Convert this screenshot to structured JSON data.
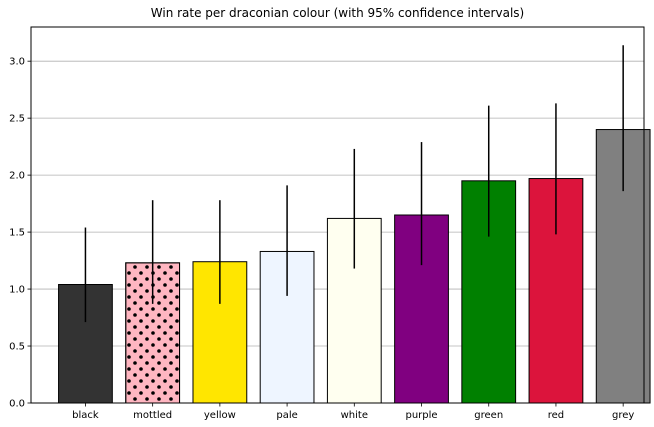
{
  "chart_data": {
    "type": "bar",
    "title": "Win rate per draconian colour (with 95% confidence intervals)",
    "xlabel": "",
    "ylabel": "",
    "categories": [
      "black",
      "mottled",
      "yellow",
      "pale",
      "white",
      "purple",
      "green",
      "red",
      "grey"
    ],
    "values": [
      1.04,
      1.23,
      1.24,
      1.33,
      1.62,
      1.65,
      1.95,
      1.97,
      2.4
    ],
    "ci_low": [
      0.71,
      0.87,
      0.87,
      0.94,
      1.18,
      1.21,
      1.46,
      1.48,
      1.86
    ],
    "ci_high": [
      1.54,
      1.78,
      1.78,
      1.91,
      2.23,
      2.29,
      2.61,
      2.63,
      3.14
    ],
    "bar_colors": [
      "#333333",
      "#ffb6c1",
      "#ffe600",
      "#eef5ff",
      "#fffff0",
      "#800080",
      "#008000",
      "#dc143c",
      "#808080"
    ],
    "bar_patterns": [
      "none",
      "dots",
      "none",
      "none",
      "none",
      "none",
      "none",
      "none",
      "none"
    ],
    "ylim": [
      0,
      3.3
    ],
    "yticks": [
      0.0,
      0.5,
      1.0,
      1.5,
      2.0,
      2.5,
      3.0
    ],
    "ytick_labels": [
      "0.0",
      "0.5",
      "1.0",
      "1.5",
      "2.0",
      "2.5",
      "3.0"
    ],
    "grid": "horizontal",
    "legend": "none"
  }
}
